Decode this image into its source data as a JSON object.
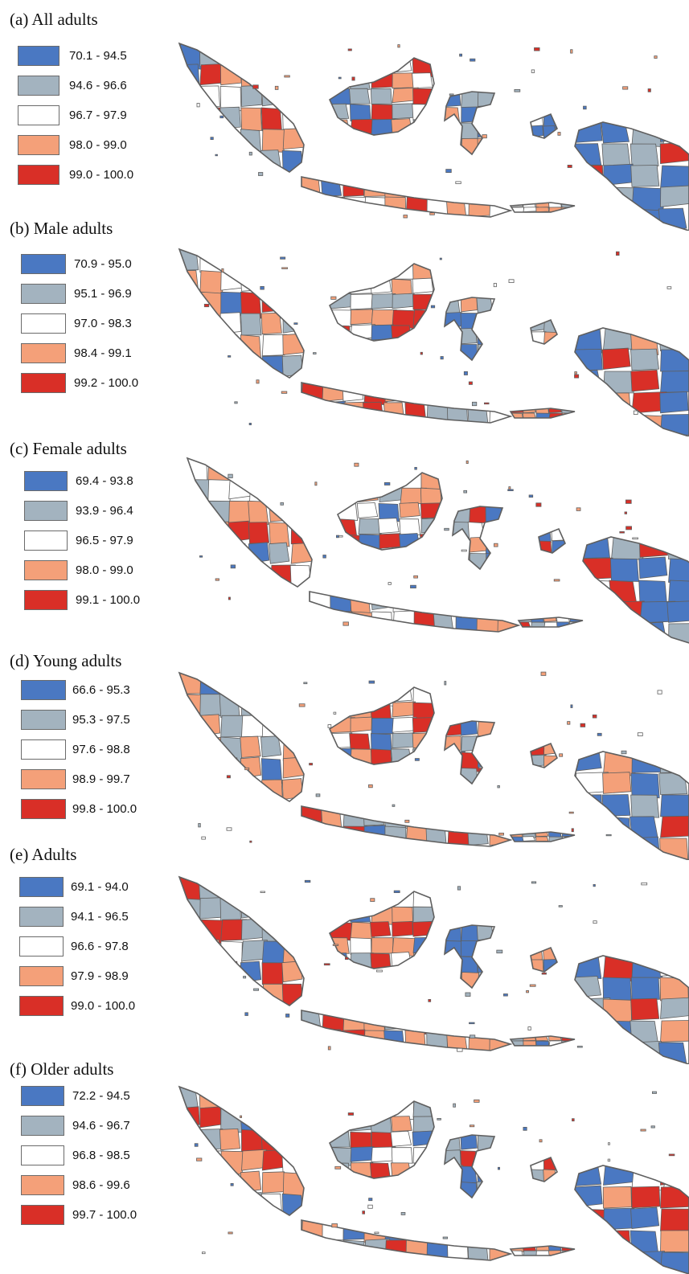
{
  "colors": {
    "blue": "#4a78c2",
    "grey": "#a3b3bf",
    "white": "#ffffff",
    "orange": "#f4a079",
    "red": "#d92f27",
    "border": "#5f5f5f"
  },
  "panels": [
    {
      "title": "(a) All adults",
      "legend": [
        {
          "label": "70.1 - 94.5",
          "color": "#4a78c2"
        },
        {
          "label": "94.6 - 96.6",
          "color": "#a3b3bf"
        },
        {
          "label": "96.7 - 97.9",
          "color": "#ffffff"
        },
        {
          "label": "98.0 - 99.0",
          "color": "#f4a079"
        },
        {
          "label": "99.0 - 100.0",
          "color": "#d92f27"
        }
      ]
    },
    {
      "title": "(b) Male adults",
      "legend": [
        {
          "label": "70.9 - 95.0",
          "color": "#4a78c2"
        },
        {
          "label": "95.1 - 96.9",
          "color": "#a3b3bf"
        },
        {
          "label": "97.0 - 98.3",
          "color": "#ffffff"
        },
        {
          "label": "98.4 - 99.1",
          "color": "#f4a079"
        },
        {
          "label": "99.2 - 100.0",
          "color": "#d92f27"
        }
      ]
    },
    {
      "title": "(c) Female adults",
      "legend": [
        {
          "label": "69.4 - 93.8",
          "color": "#4a78c2"
        },
        {
          "label": "93.9 - 96.4",
          "color": "#a3b3bf"
        },
        {
          "label": "96.5 - 97.9",
          "color": "#ffffff"
        },
        {
          "label": "98.0 - 99.0",
          "color": "#f4a079"
        },
        {
          "label": "99.1 - 100.0",
          "color": "#d92f27"
        }
      ]
    },
    {
      "title": "(d) Young adults",
      "legend": [
        {
          "label": "66.6 - 95.3",
          "color": "#4a78c2"
        },
        {
          "label": "95.3 - 97.5",
          "color": "#a3b3bf"
        },
        {
          "label": "97.6 - 98.8",
          "color": "#ffffff"
        },
        {
          "label": "98.9 - 99.7",
          "color": "#f4a079"
        },
        {
          "label": "99.8 - 100.0",
          "color": "#d92f27"
        }
      ]
    },
    {
      "title": "(e) Adults",
      "legend": [
        {
          "label": "69.1 - 94.0",
          "color": "#4a78c2"
        },
        {
          "label": "94.1 - 96.5",
          "color": "#a3b3bf"
        },
        {
          "label": "96.6 - 97.8",
          "color": "#ffffff"
        },
        {
          "label": "97.9 - 98.9",
          "color": "#f4a079"
        },
        {
          "label": "99.0 - 100.0",
          "color": "#d92f27"
        }
      ]
    },
    {
      "title": "(f) Older adults",
      "legend": [
        {
          "label": "72.2 - 94.5",
          "color": "#4a78c2"
        },
        {
          "label": "94.6 - 96.7",
          "color": "#a3b3bf"
        },
        {
          "label": "96.8 - 98.5",
          "color": "#ffffff"
        },
        {
          "label": "98.6 - 99.6",
          "color": "#f4a079"
        },
        {
          "label": "99.7 - 100.0",
          "color": "#d92f27"
        }
      ]
    }
  ]
}
